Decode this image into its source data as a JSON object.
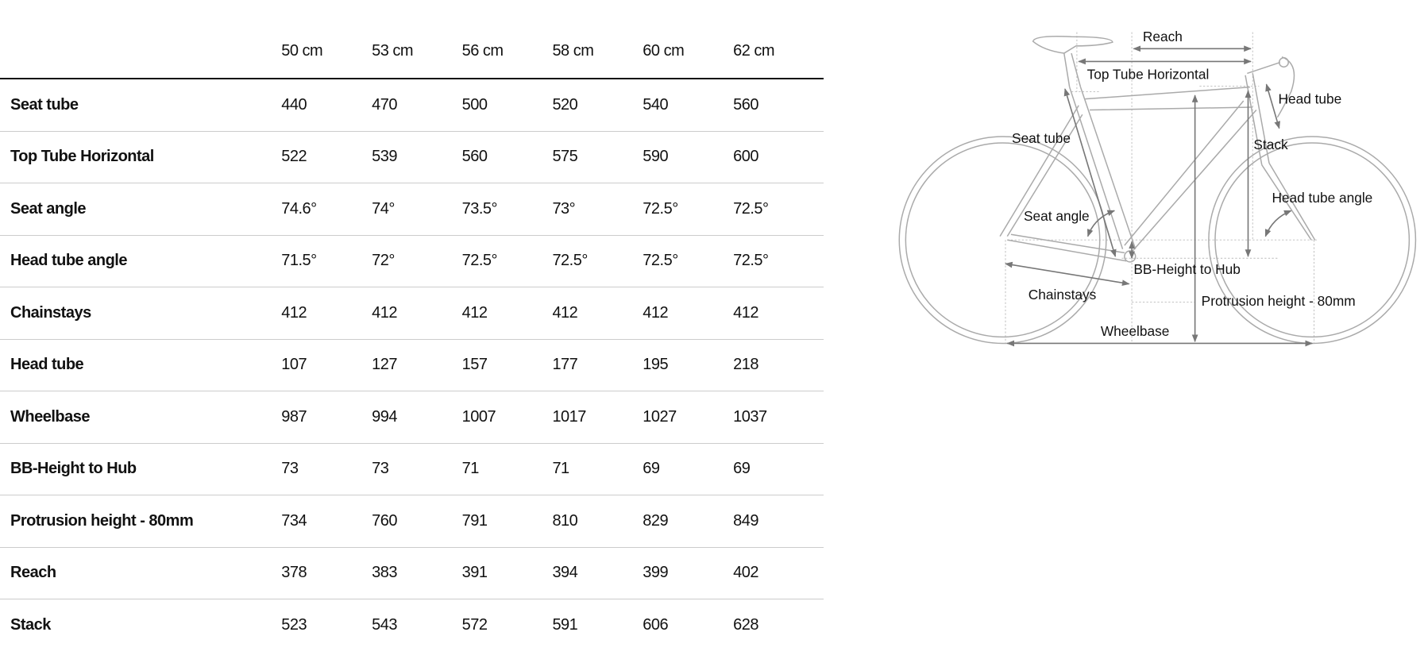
{
  "table": {
    "headers": [
      "",
      "50 cm",
      "53 cm",
      "56 cm",
      "58 cm",
      "60 cm",
      "62 cm"
    ],
    "rows": [
      {
        "label": "Seat tube",
        "values": [
          "440",
          "470",
          "500",
          "520",
          "540",
          "560"
        ]
      },
      {
        "label": "Top Tube Horizontal",
        "values": [
          "522",
          "539",
          "560",
          "575",
          "590",
          "600"
        ]
      },
      {
        "label": "Seat angle",
        "values": [
          "74.6°",
          "74°",
          "73.5°",
          "73°",
          "72.5°",
          "72.5°"
        ]
      },
      {
        "label": "Head tube angle",
        "values": [
          "71.5°",
          "72°",
          "72.5°",
          "72.5°",
          "72.5°",
          "72.5°"
        ]
      },
      {
        "label": "Chainstays",
        "values": [
          "412",
          "412",
          "412",
          "412",
          "412",
          "412"
        ]
      },
      {
        "label": "Head tube",
        "values": [
          "107",
          "127",
          "157",
          "177",
          "195",
          "218"
        ]
      },
      {
        "label": "Wheelbase",
        "values": [
          "987",
          "994",
          "1007",
          "1017",
          "1027",
          "1037"
        ]
      },
      {
        "label": "BB-Height to Hub",
        "values": [
          "73",
          "73",
          "71",
          "71",
          "69",
          "69"
        ]
      },
      {
        "label": "Protrusion height - 80mm",
        "values": [
          "734",
          "760",
          "791",
          "810",
          "829",
          "849"
        ]
      },
      {
        "label": "Reach",
        "values": [
          "378",
          "383",
          "391",
          "394",
          "399",
          "402"
        ]
      },
      {
        "label": "Stack",
        "values": [
          "523",
          "543",
          "572",
          "591",
          "606",
          "628"
        ]
      }
    ]
  },
  "diagram": {
    "labels": {
      "reach": "Reach",
      "top_tube": "Top Tube Horizontal",
      "head_tube": "Head tube",
      "seat_tube": "Seat tube",
      "stack": "Stack",
      "head_tube_angle": "Head tube angle",
      "seat_angle": "Seat angle",
      "bb_height": "BB-Height to Hub",
      "chainstays": "Chainstays",
      "protrusion": "Protrusion height - 80mm",
      "wheelbase": "Wheelbase"
    },
    "colors": {
      "frame": "#aaaaaa",
      "dimension": "#777777"
    }
  }
}
